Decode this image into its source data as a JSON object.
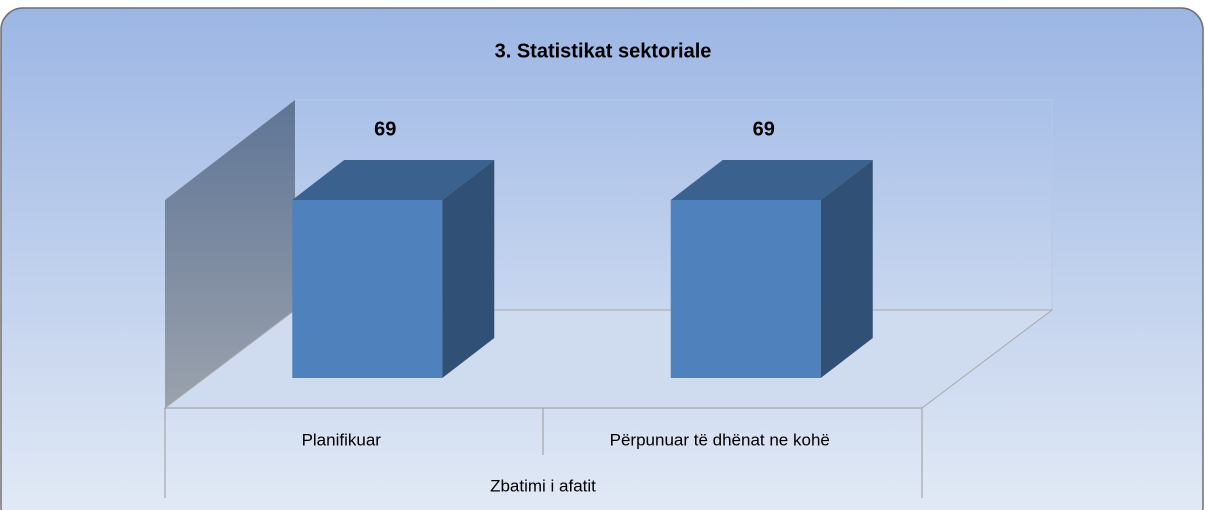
{
  "chart_data": {
    "type": "bar3d",
    "title": "3. Statistikat sektoriale",
    "categories": [
      "Planifikuar",
      "Përpunuar të dhënat ne kohë"
    ],
    "group_label": "Zbatimi i afatit",
    "values": [
      69,
      69
    ],
    "color": "#4f81bd"
  }
}
